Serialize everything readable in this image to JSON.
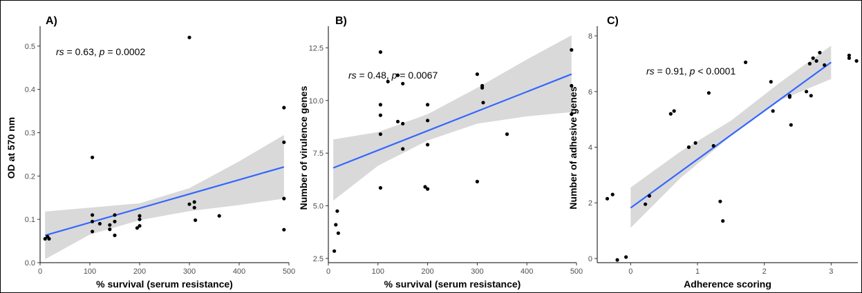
{
  "chart_data": [
    {
      "type": "scatter",
      "panel_label": "A)",
      "xlabel": "% survival (serum resistance)",
      "ylabel": "OD at 570 nm",
      "xlim": [
        0,
        500
      ],
      "ylim": [
        0,
        0.53
      ],
      "xticks": [
        0,
        100,
        200,
        300,
        400,
        500
      ],
      "yticks": [
        0.0,
        0.1,
        0.2,
        0.3,
        0.4,
        0.5
      ],
      "ytick_labels": [
        "0.0",
        "0.1",
        "0.2",
        "0.3",
        "0.4",
        "0.5"
      ],
      "annotation": {
        "stat": "rs",
        "text": " = 0.63, ",
        "p": "p",
        "ptext": " = 0.0002"
      },
      "points": [
        [
          10,
          0.055
        ],
        [
          18,
          0.055
        ],
        [
          15,
          0.06
        ],
        [
          105,
          0.243
        ],
        [
          105,
          0.11
        ],
        [
          105,
          0.095
        ],
        [
          105,
          0.072
        ],
        [
          120,
          0.09
        ],
        [
          140,
          0.087
        ],
        [
          140,
          0.077
        ],
        [
          150,
          0.11
        ],
        [
          150,
          0.095
        ],
        [
          150,
          0.063
        ],
        [
          195,
          0.08
        ],
        [
          200,
          0.108
        ],
        [
          200,
          0.1
        ],
        [
          200,
          0.085
        ],
        [
          300,
          0.52
        ],
        [
          300,
          0.135
        ],
        [
          310,
          0.14
        ],
        [
          310,
          0.127
        ],
        [
          312,
          0.098
        ],
        [
          360,
          0.108
        ],
        [
          490,
          0.358
        ],
        [
          490,
          0.278
        ],
        [
          490,
          0.148
        ],
        [
          490,
          0.076
        ]
      ],
      "fit": {
        "x": [
          10,
          490
        ],
        "y": [
          0.063,
          0.221
        ]
      },
      "ci": {
        "x": [
          10,
          100,
          200,
          300,
          400,
          490
        ],
        "lower": [
          0.008,
          0.065,
          0.098,
          0.119,
          0.133,
          0.148
        ],
        "upper": [
          0.118,
          0.127,
          0.137,
          0.172,
          0.234,
          0.295
        ]
      }
    },
    {
      "type": "scatter",
      "panel_label": "B)",
      "xlabel": "% survival (serum resistance)",
      "ylabel": "Number of virulence genes",
      "xlim": [
        0,
        500
      ],
      "ylim": [
        2.3,
        13.2
      ],
      "xticks": [
        0,
        100,
        200,
        300,
        400,
        500
      ],
      "yticks": [
        2.5,
        5.0,
        7.5,
        10.0,
        12.5
      ],
      "ytick_labels": [
        "2.5",
        "5.0",
        "7.5",
        "10.0",
        "12.5"
      ],
      "annotation": {
        "stat": "rs",
        "text": " = 0.48, ",
        "p": "p",
        "ptext": " = 0.0067"
      },
      "points": [
        [
          12,
          2.85
        ],
        [
          15,
          4.1
        ],
        [
          18,
          4.75
        ],
        [
          20,
          3.7
        ],
        [
          105,
          12.3
        ],
        [
          105,
          9.8
        ],
        [
          105,
          9.3
        ],
        [
          105,
          8.4
        ],
        [
          105,
          5.85
        ],
        [
          120,
          10.9
        ],
        [
          140,
          11.2
        ],
        [
          140,
          9.0
        ],
        [
          150,
          10.8
        ],
        [
          150,
          8.9
        ],
        [
          150,
          7.7
        ],
        [
          195,
          5.9
        ],
        [
          200,
          9.8
        ],
        [
          200,
          9.05
        ],
        [
          200,
          7.9
        ],
        [
          200,
          5.8
        ],
        [
          300,
          11.25
        ],
        [
          300,
          6.15
        ],
        [
          310,
          10.7
        ],
        [
          310,
          10.6
        ],
        [
          312,
          9.9
        ],
        [
          360,
          8.4
        ],
        [
          490,
          12.4
        ],
        [
          490,
          10.7
        ],
        [
          490,
          9.35
        ]
      ],
      "fit": {
        "x": [
          10,
          490
        ],
        "y": [
          6.8,
          11.25
        ]
      },
      "ci": {
        "x": [
          10,
          100,
          200,
          300,
          400,
          490
        ],
        "lower": [
          5.25,
          6.9,
          8.1,
          8.9,
          9.25,
          9.45
        ],
        "upper": [
          8.15,
          8.5,
          9.35,
          10.6,
          11.95,
          13.1
        ]
      }
    },
    {
      "type": "scatter",
      "panel_label": "C)",
      "xlabel": "Adherence scoring",
      "ylabel": "Number of adhesive genes",
      "xlim": [
        -0.5,
        3.4
      ],
      "ylim": [
        -0.15,
        8.1
      ],
      "xticks": [
        0,
        1,
        2,
        3
      ],
      "yticks": [
        0,
        2,
        4,
        6,
        8
      ],
      "ytick_labels": [
        "0",
        "2",
        "4",
        "6",
        "8"
      ],
      "annotation": {
        "stat": "rs",
        "text": " = 0.91, ",
        "p": "p",
        "ptext": " < 0.0001"
      },
      "points": [
        [
          -0.35,
          2.15
        ],
        [
          -0.27,
          2.3
        ],
        [
          -0.2,
          -0.05
        ],
        [
          -0.07,
          0.05
        ],
        [
          0.22,
          1.95
        ],
        [
          0.28,
          2.25
        ],
        [
          0.6,
          5.2
        ],
        [
          0.65,
          5.3
        ],
        [
          0.87,
          4.0
        ],
        [
          0.97,
          4.15
        ],
        [
          1.17,
          5.95
        ],
        [
          1.24,
          4.05
        ],
        [
          1.34,
          2.05
        ],
        [
          1.38,
          1.35
        ],
        [
          1.72,
          7.05
        ],
        [
          2.1,
          6.35
        ],
        [
          2.13,
          5.3
        ],
        [
          2.38,
          5.85
        ],
        [
          2.38,
          5.8
        ],
        [
          2.4,
          4.8
        ],
        [
          2.63,
          6.0
        ],
        [
          2.68,
          7.0
        ],
        [
          2.7,
          5.85
        ],
        [
          2.73,
          7.2
        ],
        [
          2.78,
          7.1
        ],
        [
          2.83,
          7.4
        ],
        [
          2.9,
          6.95
        ],
        [
          3.27,
          7.3
        ],
        [
          3.27,
          7.2
        ],
        [
          3.38,
          7.1
        ]
      ],
      "fit": {
        "x": [
          0,
          3
        ],
        "y": [
          1.82,
          7.05
        ]
      },
      "ci": {
        "x": [
          0,
          0.75,
          1.5,
          2.25,
          3
        ],
        "lower": [
          1.1,
          2.9,
          4.4,
          5.7,
          6.45
        ],
        "upper": [
          2.55,
          3.85,
          4.95,
          6.35,
          7.65
        ]
      }
    }
  ]
}
